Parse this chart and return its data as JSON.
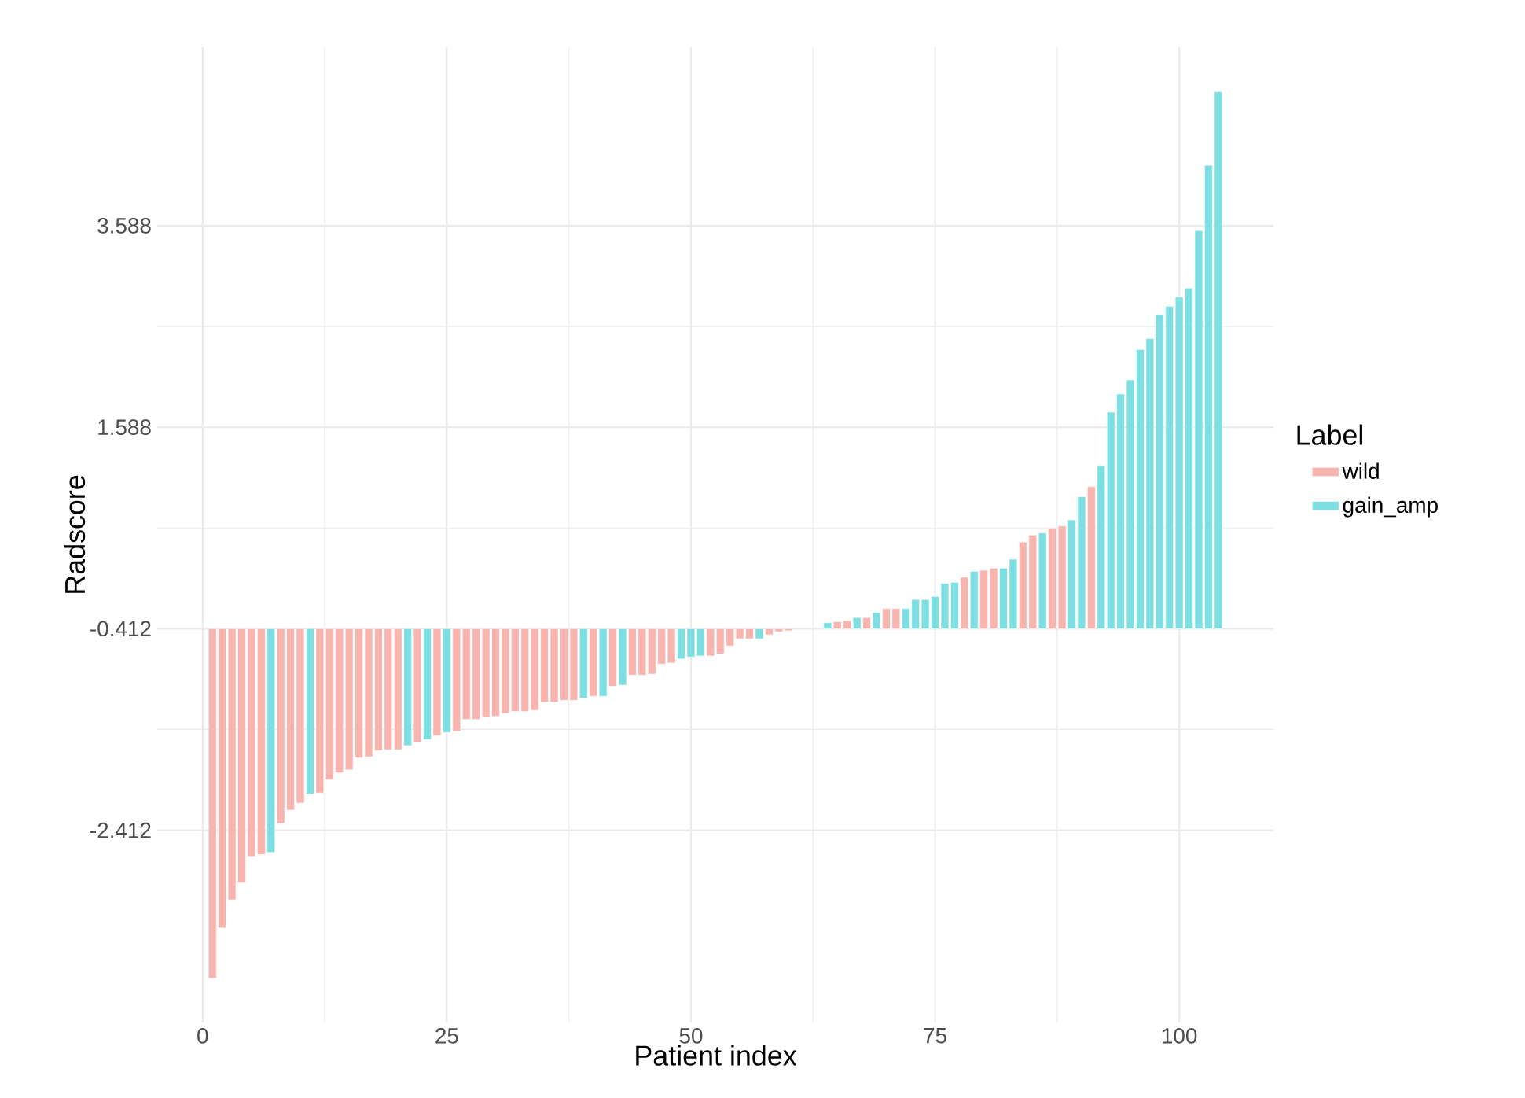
{
  "chart_data": {
    "type": "bar",
    "xlabel": "Patient index",
    "ylabel": "Radscore",
    "legend_title": "Label",
    "legend": "right",
    "grid": true,
    "xlim": [
      -4.65,
      109.65
    ],
    "ylim": [
      -4.32,
      5.36
    ],
    "xticks": [
      0,
      25,
      50,
      75,
      100
    ],
    "yticks": [
      -2.412,
      -0.412,
      1.588,
      3.588
    ],
    "series": [
      {
        "name": "wild",
        "color": "#f8b4ae",
        "x": [
          1,
          2,
          3,
          4,
          5,
          6,
          8,
          9,
          10,
          12,
          13,
          14,
          15,
          16,
          17,
          18,
          19,
          20,
          22,
          24,
          26,
          27,
          28,
          29,
          30,
          31,
          32,
          33,
          34,
          35,
          36,
          37,
          38,
          40,
          42,
          44,
          45,
          46,
          47,
          48,
          52,
          53,
          54,
          55,
          56,
          58,
          59,
          60,
          65,
          66,
          68,
          70,
          71,
          78,
          80,
          81,
          84,
          85,
          87,
          88,
          91
        ],
        "values": [
          -3.47,
          -2.97,
          -2.69,
          -2.52,
          -2.26,
          -2.24,
          -1.93,
          -1.8,
          -1.73,
          -1.63,
          -1.5,
          -1.43,
          -1.4,
          -1.28,
          -1.27,
          -1.21,
          -1.2,
          -1.2,
          -1.13,
          -1.06,
          -1.02,
          -0.9,
          -0.9,
          -0.88,
          -0.87,
          -0.84,
          -0.82,
          -0.82,
          -0.81,
          -0.73,
          -0.73,
          -0.71,
          -0.71,
          -0.67,
          -0.57,
          -0.46,
          -0.46,
          -0.45,
          -0.35,
          -0.34,
          -0.27,
          -0.25,
          -0.17,
          -0.1,
          -0.1,
          -0.06,
          -0.03,
          -0.02,
          0.07,
          0.08,
          0.11,
          0.2,
          0.2,
          0.51,
          0.58,
          0.6,
          0.86,
          0.93,
          1.0,
          1.02,
          1.41
        ],
        "base": [
          -0.412,
          -0.412,
          -0.412,
          -0.412,
          -0.412,
          -0.412,
          -0.412,
          -0.412,
          -0.412,
          -0.412,
          -0.412,
          -0.412,
          -0.412,
          -0.412,
          -0.412,
          -0.412,
          -0.412,
          -0.412,
          -0.412,
          -0.412,
          -0.412,
          -0.412,
          -0.412,
          -0.412,
          -0.412,
          -0.412,
          -0.412,
          -0.412,
          -0.412,
          -0.412,
          -0.412,
          -0.412,
          -0.412,
          -0.412,
          -0.412,
          -0.412,
          -0.412,
          -0.412,
          -0.412,
          -0.412,
          -0.412,
          -0.412,
          -0.412,
          -0.412,
          -0.412,
          -0.412,
          -0.412,
          -0.412,
          -0.412,
          -0.412,
          -0.412,
          -0.412,
          -0.412,
          -0.412,
          -0.412,
          -0.412,
          -0.412,
          -0.412,
          -0.412,
          -0.412,
          -0.412
        ]
      },
      {
        "name": "gain_amp",
        "color": "#7ddfe1",
        "x": [
          7,
          11,
          21,
          23,
          25,
          39,
          41,
          43,
          49,
          50,
          51,
          57,
          64,
          67,
          69,
          72,
          73,
          74,
          75,
          76,
          77,
          79,
          82,
          83,
          86,
          89,
          90,
          92,
          93,
          94,
          95,
          96,
          97,
          98,
          99,
          100,
          101,
          102,
          103,
          104
        ],
        "values": [
          -2.22,
          -1.64,
          -1.16,
          -1.1,
          -1.03,
          -0.69,
          -0.67,
          -0.56,
          -0.3,
          -0.28,
          -0.27,
          -0.1,
          0.06,
          0.11,
          0.16,
          0.2,
          0.29,
          0.29,
          0.32,
          0.45,
          0.46,
          0.57,
          0.6,
          0.69,
          0.95,
          1.08,
          1.31,
          1.62,
          2.15,
          2.33,
          2.47,
          2.77,
          2.88,
          3.12,
          3.2,
          3.29,
          3.38,
          3.95,
          4.6,
          5.33
        ],
        "base": [
          -0.412,
          -0.412,
          -0.412,
          -0.412,
          -0.412,
          -0.412,
          -0.412,
          -0.412,
          -0.412,
          -0.412,
          -0.412,
          -0.412,
          -0.412,
          -0.412,
          -0.412,
          -0.412,
          -0.412,
          -0.412,
          -0.412,
          -0.412,
          -0.412,
          -0.412,
          -0.412,
          -0.412,
          -0.412,
          -0.412,
          -0.412,
          -0.412,
          -0.412,
          -0.412,
          -0.412,
          -0.412,
          -0.412,
          -0.412,
          -0.412,
          -0.412,
          -0.412,
          -0.412,
          -0.412,
          -0.412
        ]
      }
    ]
  }
}
